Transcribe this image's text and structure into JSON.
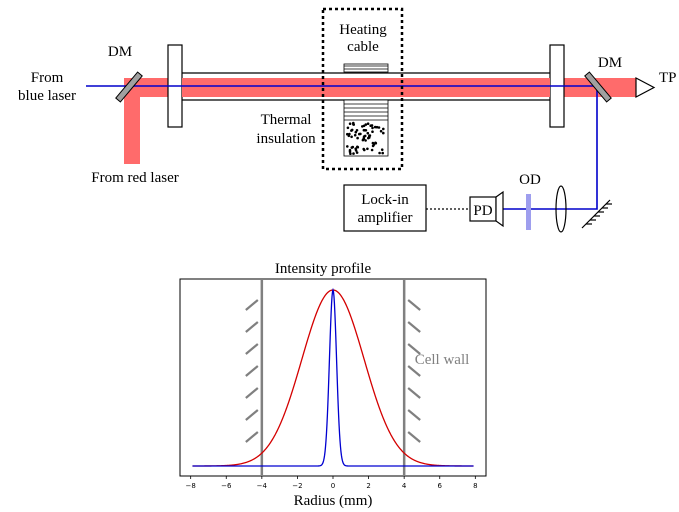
{
  "setup": {
    "from_blue_1": "From",
    "from_blue_2": "blue laser",
    "dm_left": "DM",
    "dm_right": "DM",
    "tp": "TP",
    "heating_1": "Heating",
    "heating_2": "cable",
    "thermal_1": "Thermal",
    "thermal_2": "insulation",
    "from_red": "From red laser",
    "od": "OD",
    "lockin_1": "Lock-in",
    "lockin_2": "amplifier",
    "pd": "PD",
    "colors": {
      "red_beam": "#ff6b6b",
      "blue_beam": "#0000cc",
      "od_filter": "#9e9eee",
      "gray": "#808080"
    }
  },
  "chart_data": {
    "type": "line",
    "title": "Intensity profile",
    "xlabel": "Radius (mm)",
    "ylabel": "",
    "xlim": [
      -8.6,
      8.6
    ],
    "ylim": [
      0,
      1.1
    ],
    "xticks": [
      -8,
      -6,
      -4,
      -2,
      0,
      2,
      4,
      6,
      8
    ],
    "cell_wall_positions": [
      -4,
      4
    ],
    "cell_wall_label": "Cell wall",
    "series": [
      {
        "color": "#d40000",
        "shape": "gaussian",
        "center": 0,
        "sigma": 1.75,
        "amplitude": 1.0
      },
      {
        "color": "#0000d0",
        "shape": "gaussian",
        "center": 0,
        "sigma": 0.2,
        "amplitude": 1.0
      }
    ]
  }
}
